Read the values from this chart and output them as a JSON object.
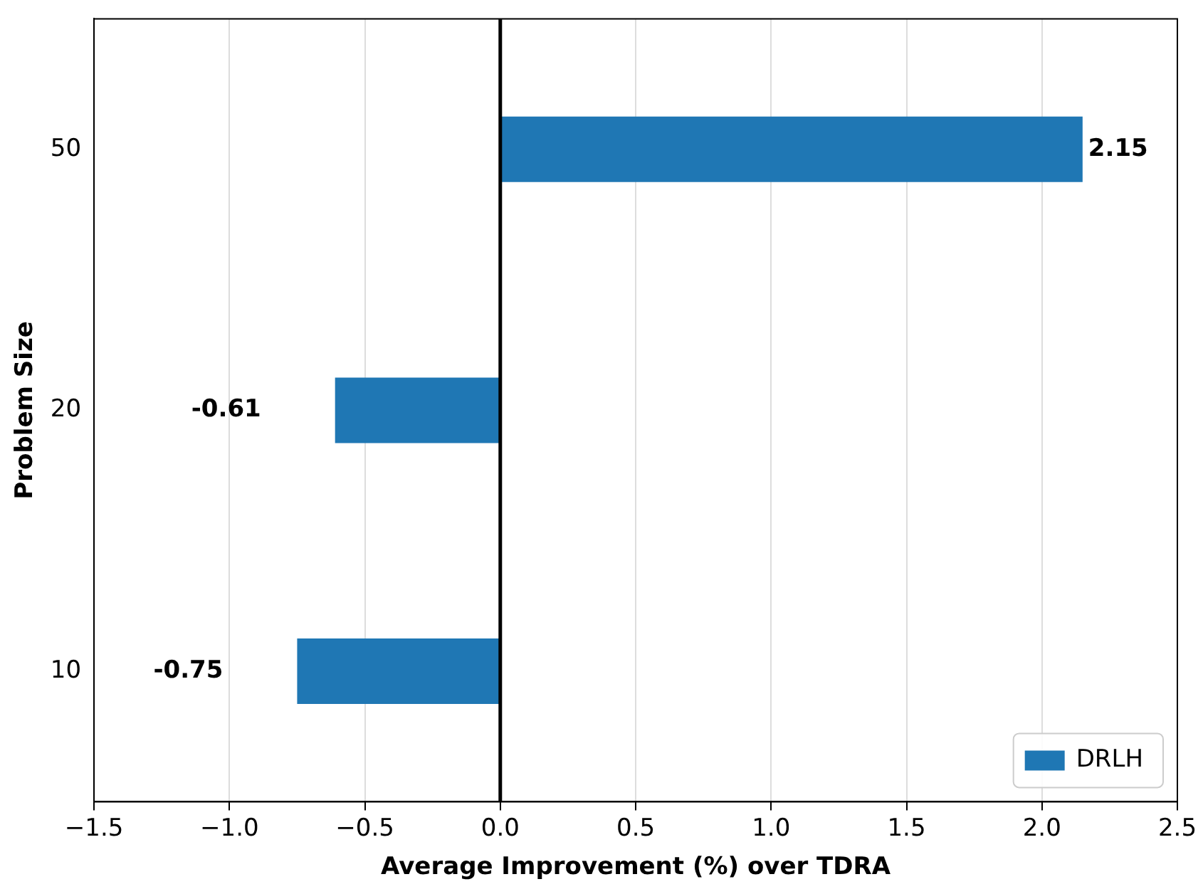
{
  "chart_data": {
    "type": "bar",
    "orientation": "horizontal",
    "categories": [
      "50",
      "20",
      "10"
    ],
    "series": [
      {
        "name": "DRLH",
        "color": "#1f77b4",
        "values": [
          2.15,
          -0.61,
          -0.75
        ]
      }
    ],
    "data_labels": true,
    "xlabel": "Average Improvement (%) over TDRA",
    "ylabel": "Problem Size",
    "xlim": [
      -1.5,
      2.5
    ],
    "xticks": [
      {
        "value": -1.5,
        "label": "−1.5"
      },
      {
        "value": -1,
        "label": "−1.0"
      },
      {
        "value": -0.5,
        "label": "−0.5"
      },
      {
        "value": 0,
        "label": "0.0"
      },
      {
        "value": 0.5,
        "label": "0.5"
      },
      {
        "value": 1,
        "label": "1.0"
      },
      {
        "value": 1.5,
        "label": "1.5"
      },
      {
        "value": 2,
        "label": "2.0"
      },
      {
        "value": 2.5,
        "label": "2.5"
      }
    ],
    "ref_lines": [
      {
        "axis": "x",
        "value": 0,
        "color": "#000000"
      }
    ],
    "grid": "x",
    "legend": "bottom right"
  }
}
